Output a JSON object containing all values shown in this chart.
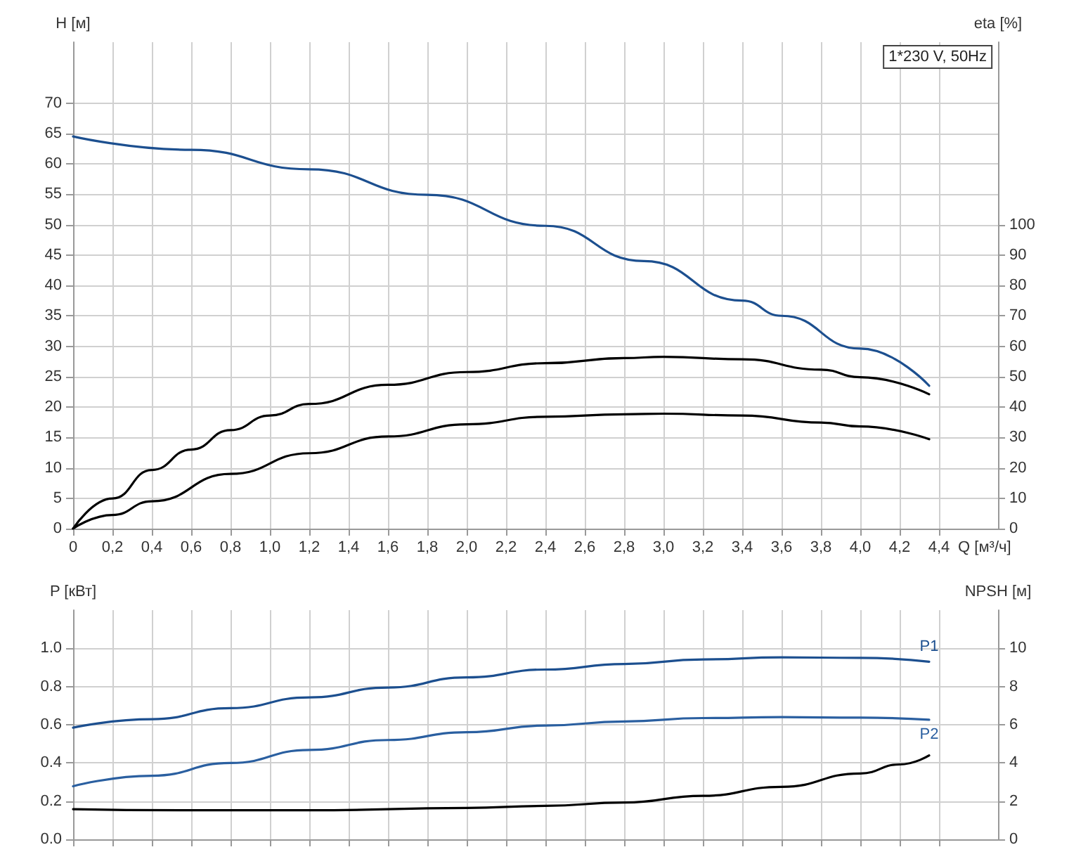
{
  "chart_data": [
    {
      "type": "line",
      "title": "1*230 V, 50Hz",
      "xlabel": "Q [м³/ч]",
      "ylabel": "H [м]",
      "y2label": "eta [%]",
      "grid": true,
      "legend": false,
      "marker": "none",
      "line_style": "solid",
      "xlim": [
        0,
        4.7
      ],
      "xticks": [
        0,
        {
          "value": 0.2,
          "label": "0,2"
        },
        {
          "value": 0.4,
          "label": "0,4"
        },
        {
          "value": 0.6,
          "label": "0,6"
        },
        {
          "value": 0.8,
          "label": "0,8"
        },
        {
          "value": 1.0,
          "label": "1,0"
        },
        {
          "value": 1.2,
          "label": "1,2"
        },
        {
          "value": 1.4,
          "label": "1,4"
        },
        {
          "value": 1.6,
          "label": "1,6"
        },
        {
          "value": 1.8,
          "label": "1,8"
        },
        {
          "value": 2.0,
          "label": "2,0"
        },
        {
          "value": 2.2,
          "label": "2,2"
        },
        {
          "value": 2.4,
          "label": "2,4"
        },
        {
          "value": 2.6,
          "label": "2,6"
        },
        {
          "value": 2.8,
          "label": "2,8"
        },
        {
          "value": 3.0,
          "label": "3,0"
        },
        {
          "value": 3.2,
          "label": "3,2"
        },
        {
          "value": 3.4,
          "label": "3,4"
        },
        {
          "value": 3.6,
          "label": "3,6"
        },
        {
          "value": 3.8,
          "label": "3,8"
        },
        {
          "value": 4.0,
          "label": "4,0"
        },
        {
          "value": 4.2,
          "label": "4,2"
        },
        {
          "value": 4.4,
          "label": "4,4"
        }
      ],
      "ylim": [
        0,
        80
      ],
      "yticks": [
        0,
        5,
        10,
        15,
        20,
        25,
        30,
        35,
        40,
        45,
        50,
        55,
        60,
        65,
        70
      ],
      "y2lim": [
        0,
        160
      ],
      "y2ticks": [
        0,
        10,
        20,
        30,
        40,
        50,
        60,
        70,
        80,
        90,
        100
      ],
      "series": [
        {
          "color": "#1c4f8f",
          "x": [
            0,
            0.6,
            1.2,
            1.8,
            2.4,
            2.9,
            3.4,
            3.6,
            4.0,
            4.35
          ],
          "values": [
            64.5,
            62.3,
            59.1,
            54.9,
            49.8,
            44,
            37.5,
            35,
            29.6,
            23.5
          ]
        },
        {
          "color": "#000000",
          "axis": "y2",
          "x": [
            0,
            0.2,
            0.4,
            0.6,
            0.8,
            1.0,
            1.2,
            1.6,
            2.0,
            2.4,
            2.8,
            3.0,
            3.4,
            3.8,
            4.0,
            4.35
          ],
          "values": [
            0,
            9.9,
            19.3,
            26,
            32.4,
            37.2,
            41,
            47.3,
            51.5,
            54.4,
            56.1,
            56.5,
            55.7,
            52.3,
            49.8,
            44.2
          ]
        },
        {
          "color": "#000000",
          "axis": "y2",
          "x": [
            0,
            0.2,
            0.4,
            0.8,
            1.2,
            1.6,
            2.0,
            2.4,
            2.8,
            3.0,
            3.4,
            3.8,
            4.0,
            4.35
          ],
          "values": [
            0,
            4.5,
            9,
            18,
            24.8,
            30.3,
            34.3,
            36.8,
            37.6,
            37.8,
            37.2,
            34.9,
            33.6,
            29.4
          ]
        }
      ]
    },
    {
      "type": "line",
      "ylabel": "P [кВт]",
      "y2label": "NPSH [м]",
      "grid": true,
      "legend": false,
      "marker": "none",
      "line_style": "solid",
      "tick_labels": "y",
      "xlim": [
        0,
        4.7
      ],
      "xticks": [
        0,
        0.2,
        0.4,
        0.6,
        0.8,
        1.0,
        1.2,
        1.4,
        1.6,
        1.8,
        2.0,
        2.2,
        2.4,
        2.6,
        2.8,
        3.0,
        3.2,
        3.4,
        3.6,
        3.8,
        4.0,
        4.2,
        4.4
      ],
      "ylim": [
        0,
        1.2
      ],
      "yticks": [
        {
          "value": 0,
          "label": "0.0"
        },
        0.2,
        0.4,
        0.6,
        0.8,
        {
          "value": 1.0,
          "label": "1.0"
        }
      ],
      "y2lim": [
        0,
        12
      ],
      "y2ticks": [
        0,
        2,
        4,
        6,
        8,
        10
      ],
      "series": [
        {
          "name": "P1",
          "color": "#1c4f8f",
          "x": [
            0,
            0.4,
            0.8,
            1.2,
            1.6,
            2.0,
            2.4,
            2.8,
            3.2,
            3.6,
            4.0,
            4.35
          ],
          "values": [
            0.585,
            0.629,
            0.687,
            0.743,
            0.795,
            0.848,
            0.889,
            0.918,
            0.942,
            0.953,
            0.95,
            0.93
          ]
        },
        {
          "name": "P2",
          "color": "#2a5fa0",
          "x": [
            0,
            0.4,
            0.8,
            1.2,
            1.6,
            2.0,
            2.4,
            2.8,
            3.2,
            3.6,
            4.0,
            4.35
          ],
          "values": [
            0.278,
            0.333,
            0.4,
            0.468,
            0.52,
            0.561,
            0.596,
            0.617,
            0.635,
            0.64,
            0.637,
            0.626
          ]
        },
        {
          "color": "#000000",
          "axis": "y2",
          "x": [
            0,
            0.6,
            1.2,
            2.0,
            2.4,
            2.8,
            3.2,
            3.6,
            4.0,
            4.2,
            4.35
          ],
          "values": [
            1.58,
            1.52,
            1.52,
            1.64,
            1.75,
            1.93,
            2.28,
            2.75,
            3.45,
            3.92,
            4.39
          ]
        }
      ]
    }
  ]
}
